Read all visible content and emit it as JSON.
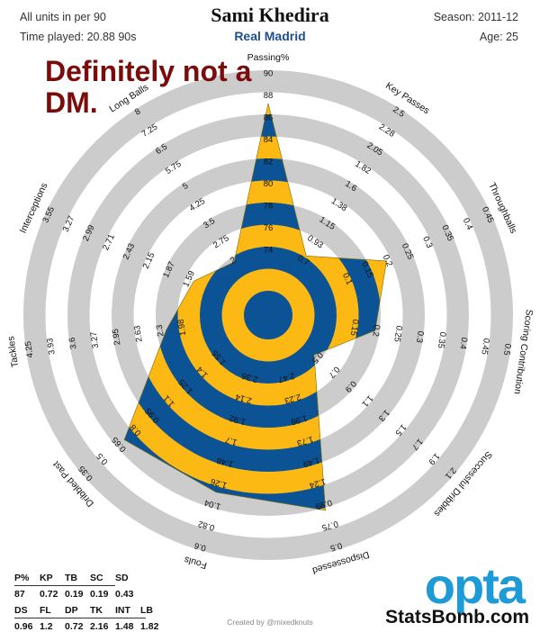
{
  "header": {
    "units": "All units in per 90",
    "time_played": "Time played: 20.88 90s",
    "player": "Sami Khedira",
    "team": "Real Madrid",
    "season": "Season: 2011-12",
    "age": "Age: 25"
  },
  "annotation": "Definitely not a DM.",
  "colors": {
    "ring_gray": "#cccccc",
    "gold": "#fdb913",
    "blue": "#0b5394",
    "opta": "#1e9bd7",
    "annotation": "#7a0c0c",
    "team": "#1f4e8c"
  },
  "chart_data": {
    "type": "radar",
    "axes": [
      {
        "name": "Passing%",
        "ticks": [
          "74",
          "76",
          "78",
          "80",
          "82",
          "84",
          "86",
          "88",
          "90"
        ],
        "value": 87
      },
      {
        "name": "Key Passes",
        "ticks": [
          "0.7",
          "0.93",
          "1.15",
          "1.38",
          "1.6",
          "1.82",
          "2.05",
          "2.28",
          "2.5"
        ],
        "value": 0.72
      },
      {
        "name": "Throughballs",
        "ticks": [
          "0.1",
          "0.15",
          "0.2",
          "0.25",
          "0.3",
          "0.35",
          "0.4",
          "0.45"
        ],
        "value": 0.19
      },
      {
        "name": "Scoring Contribution",
        "ticks": [
          "0.15",
          "0.2",
          "0.25",
          "0.3",
          "0.35",
          "0.4",
          "0.45",
          "0.5"
        ],
        "value": 0.19
      },
      {
        "name": "Successful Dribbles",
        "ticks": [
          "0.5",
          "0.7",
          "0.9",
          "1.1",
          "1.3",
          "1.5",
          "1.7",
          "1.9",
          "2.1"
        ],
        "value": 0.43
      },
      {
        "name": "Dispossessed",
        "ticks": [
          "2.47",
          "2.23",
          "1.98",
          "1.73",
          "1.49",
          "1.24",
          "0.99",
          "0.75",
          "0.5"
        ],
        "value": 0.96
      },
      {
        "name": "Fouls",
        "ticks": [
          "2.36",
          "2.14",
          "1.92",
          "1.7",
          "1.48",
          "1.26",
          "1.04",
          "0.82",
          "0.6"
        ],
        "value": 1.2
      },
      {
        "name": "Dribbled Past",
        "ticks": [
          "1.55",
          "1.4",
          "1.25",
          "1.1",
          "0.95",
          "0.8",
          "0.65",
          "0.5",
          "0.35"
        ],
        "value": 0.72
      },
      {
        "name": "Tackles",
        "ticks": [
          "1.98",
          "2.3",
          "2.63",
          "2.95",
          "3.27",
          "3.6",
          "3.93",
          "4.25"
        ],
        "value": 2.16
      },
      {
        "name": "Interceptions",
        "ticks": [
          "1.59",
          "1.87",
          "2.15",
          "2.43",
          "2.71",
          "2.99",
          "3.27",
          "3.55"
        ],
        "value": 1.48
      },
      {
        "name": "Long Balls",
        "ticks": [
          "2",
          "2.75",
          "3.5",
          "4.25",
          "5",
          "5.75",
          "6.5",
          "7.25",
          "8"
        ],
        "value": 1.82
      }
    ]
  },
  "stats_table": {
    "row1_headers": [
      "P%",
      "KP",
      "TB",
      "SC",
      "SD"
    ],
    "row1_values": [
      "87",
      "0.72",
      "0.19",
      "0.19",
      "0.43"
    ],
    "row2_headers": [
      "DS",
      "FL",
      "DP",
      "TK",
      "INT",
      "LB"
    ],
    "row2_values": [
      "0.96",
      "1.2",
      "0.72",
      "2.16",
      "1.48",
      "1.82"
    ]
  },
  "credit": "Created by @mixedknuts",
  "brand": {
    "opta": "opta",
    "statsbomb": "StatsBomb.com"
  }
}
